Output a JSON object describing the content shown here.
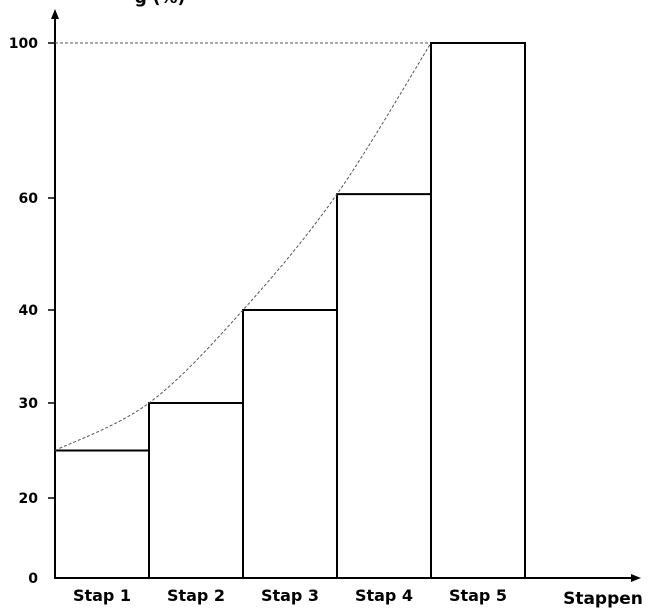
{
  "chart_data": {
    "type": "bar",
    "title": "",
    "xlabel": "Stappen",
    "ylabel_partial": "g (%)",
    "categories": [
      "Stap 1",
      "Stap 2",
      "Stap 3",
      "Stap 4",
      "Stap 5"
    ],
    "values": [
      25,
      30,
      40,
      61,
      100
    ],
    "y_tick_labels": [
      "0",
      "20",
      "30",
      "40",
      "60",
      "100"
    ],
    "y_tick_values": [
      0,
      20,
      30,
      40,
      60,
      100
    ],
    "y_scale": "non-linear (ticks at 0, 20, 30, 40, 60, 100)",
    "trend_curve": "dashed curve through bar tops",
    "reference_line": "dashed horizontal line at 100",
    "grid": false,
    "legend": "none",
    "colors": {
      "bar_fill": "#ffffff",
      "bar_stroke": "#000000",
      "curve": "#555555"
    }
  }
}
